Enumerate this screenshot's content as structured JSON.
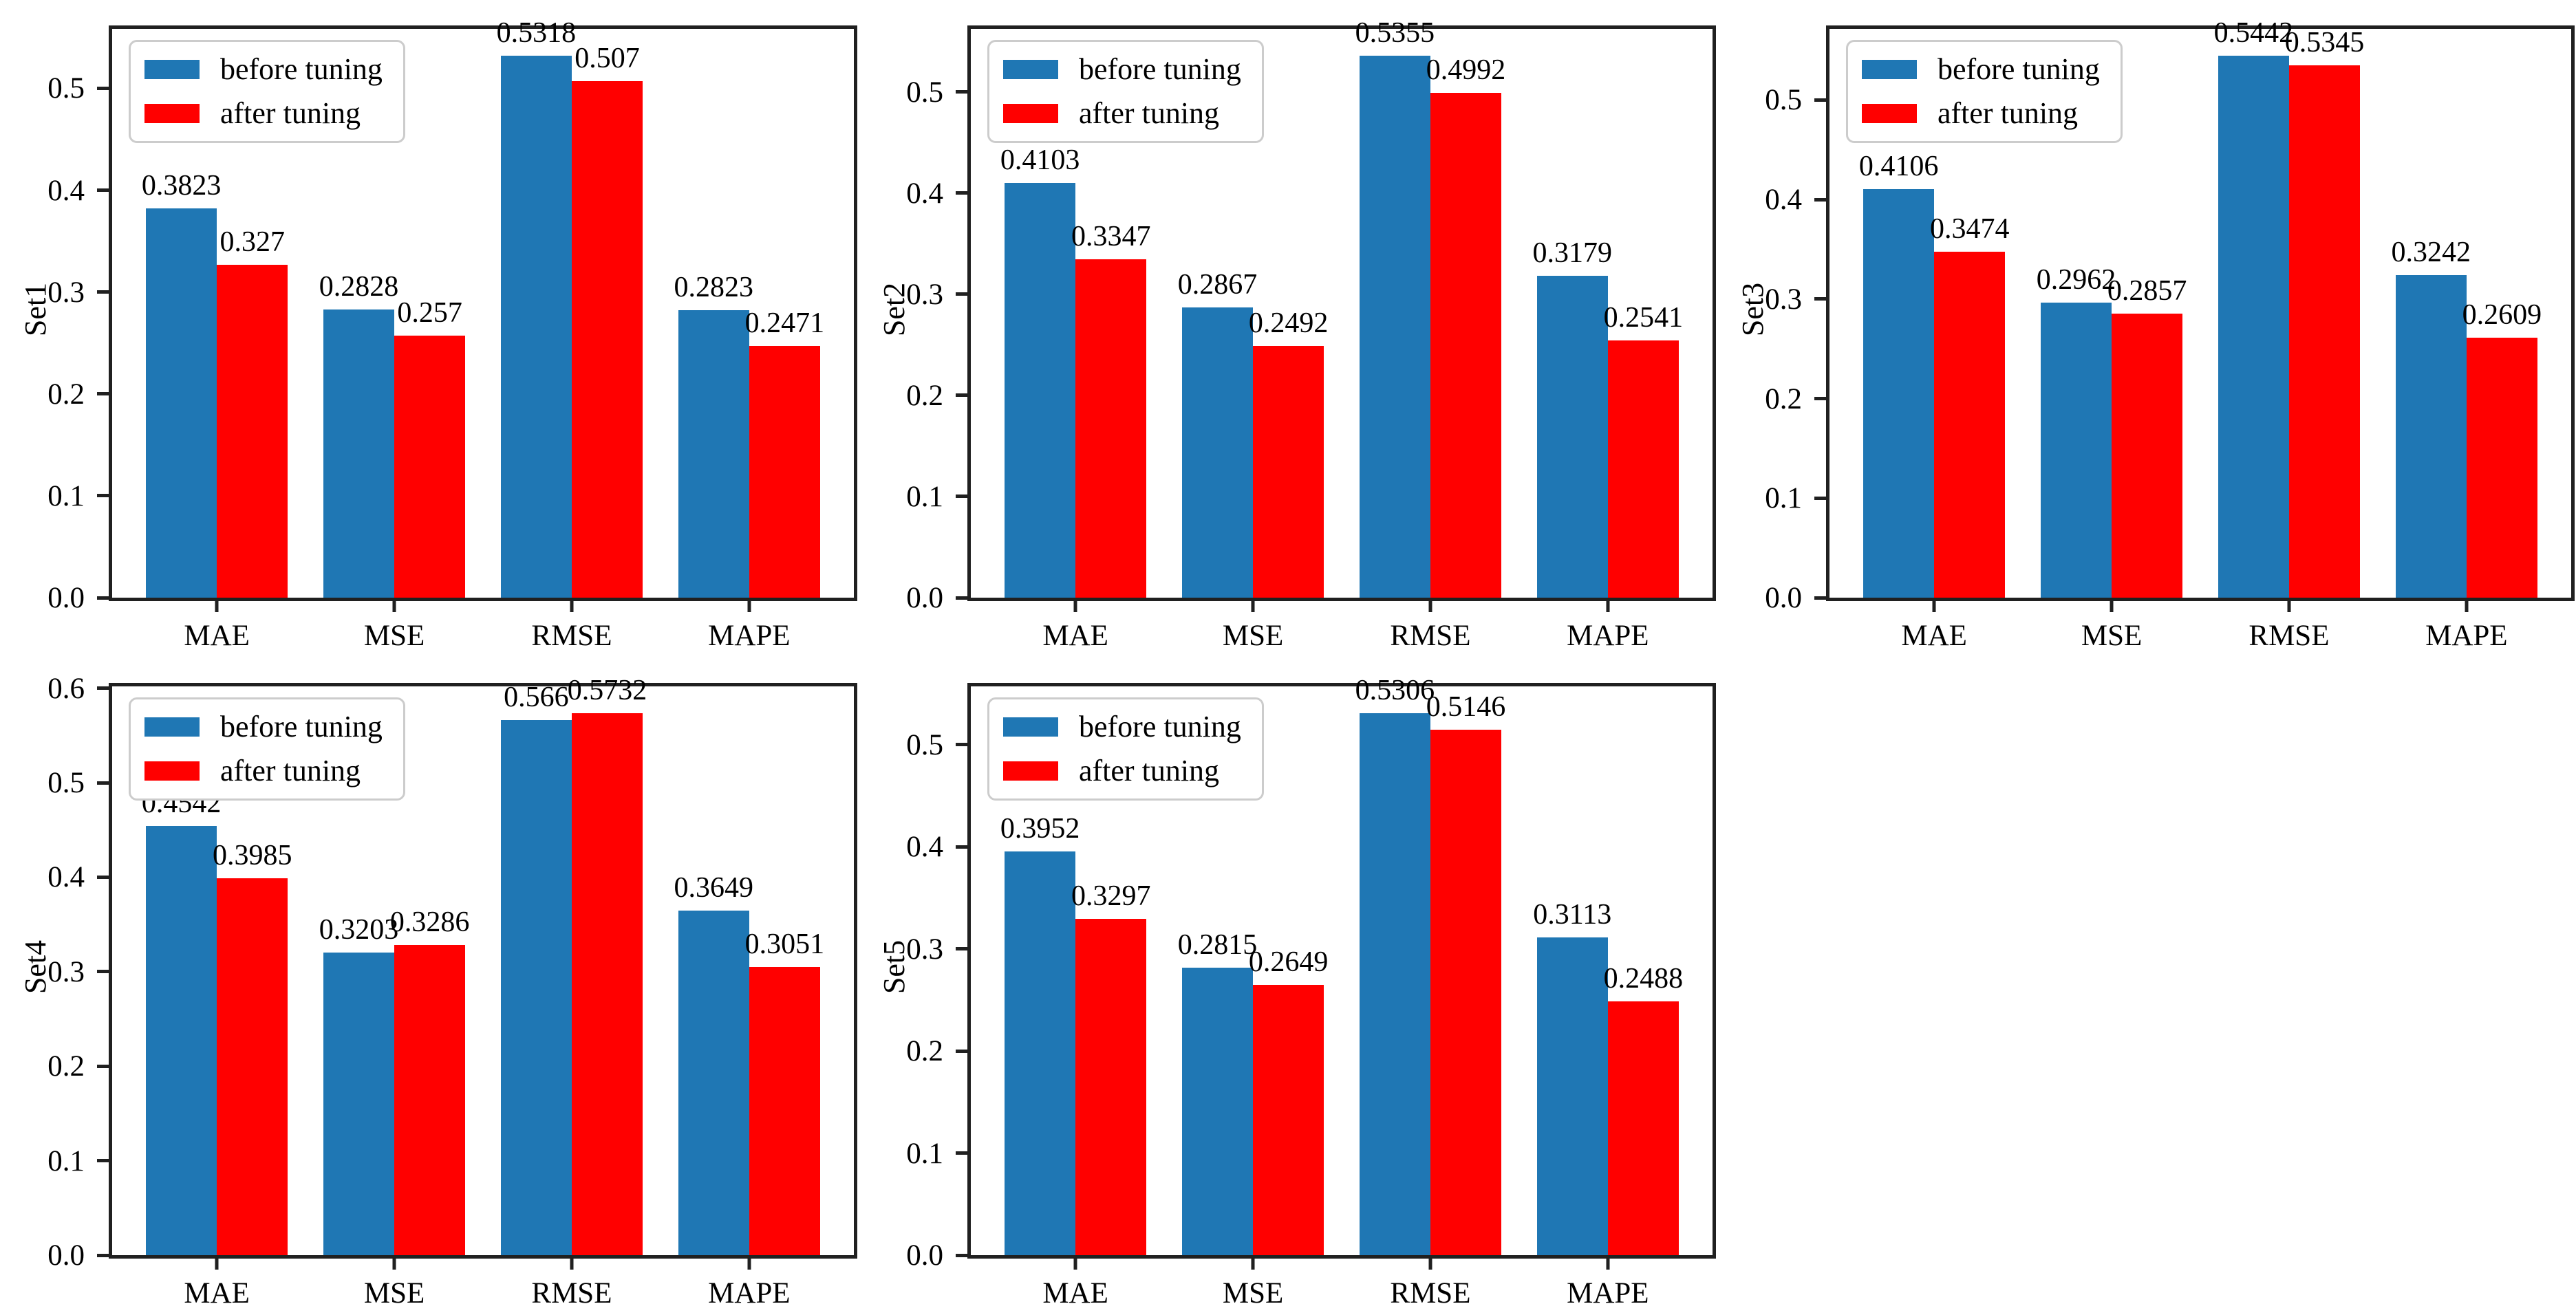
{
  "figure": {
    "background": "#ffffff",
    "grid_columns": 3,
    "grid_rows": 2
  },
  "colors": {
    "before": "#1f77b4",
    "after": "#ff0000",
    "spine": "#202020",
    "legend_border": "#cccccc",
    "text": "#000000"
  },
  "legend": {
    "position": "upper left",
    "before_label": "before tuning",
    "after_label": "after tuning"
  },
  "chart_data": [
    {
      "type": "bar",
      "ylabel": "Set1",
      "categories": [
        "MAE",
        "MSE",
        "RMSE",
        "MAPE"
      ],
      "series": [
        {
          "name": "before tuning",
          "color_key": "before",
          "values": [
            0.3823,
            0.2828,
            0.5318,
            0.2823
          ]
        },
        {
          "name": "after tuning",
          "color_key": "after",
          "values": [
            0.327,
            0.257,
            0.507,
            0.2471
          ]
        }
      ],
      "yticks": [
        0.0,
        0.1,
        0.2,
        0.3,
        0.4,
        0.5
      ],
      "ylim": [
        0,
        0.5584
      ],
      "grid": false,
      "legend_position": "upper left"
    },
    {
      "type": "bar",
      "ylabel": "Set2",
      "categories": [
        "MAE",
        "MSE",
        "RMSE",
        "MAPE"
      ],
      "series": [
        {
          "name": "before tuning",
          "color_key": "before",
          "values": [
            0.4103,
            0.2867,
            0.5355,
            0.3179
          ]
        },
        {
          "name": "after tuning",
          "color_key": "after",
          "values": [
            0.3347,
            0.2492,
            0.4992,
            0.2541
          ]
        }
      ],
      "yticks": [
        0.0,
        0.1,
        0.2,
        0.3,
        0.4,
        0.5
      ],
      "ylim": [
        0,
        0.5623
      ],
      "grid": false,
      "legend_position": "upper left"
    },
    {
      "type": "bar",
      "ylabel": "Set3",
      "categories": [
        "MAE",
        "MSE",
        "RMSE",
        "MAPE"
      ],
      "series": [
        {
          "name": "before tuning",
          "color_key": "before",
          "values": [
            0.4106,
            0.2962,
            0.5442,
            0.3242
          ]
        },
        {
          "name": "after tuning",
          "color_key": "after",
          "values": [
            0.3474,
            0.2857,
            0.5345,
            0.2609
          ]
        }
      ],
      "yticks": [
        0.0,
        0.1,
        0.2,
        0.3,
        0.4,
        0.5
      ],
      "ylim": [
        0,
        0.5714
      ],
      "grid": false,
      "legend_position": "upper left"
    },
    {
      "type": "bar",
      "ylabel": "Set4",
      "categories": [
        "MAE",
        "MSE",
        "RMSE",
        "MAPE"
      ],
      "series": [
        {
          "name": "before tuning",
          "color_key": "before",
          "values": [
            0.4542,
            0.3203,
            0.566,
            0.3649
          ]
        },
        {
          "name": "after tuning",
          "color_key": "after",
          "values": [
            0.3985,
            0.3286,
            0.5732,
            0.3051
          ]
        }
      ],
      "yticks": [
        0.0,
        0.1,
        0.2,
        0.3,
        0.4,
        0.5,
        0.6
      ],
      "ylim": [
        0,
        0.6019
      ],
      "grid": false,
      "legend_position": "upper left"
    },
    {
      "type": "bar",
      "ylabel": "Set5",
      "categories": [
        "MAE",
        "MSE",
        "RMSE",
        "MAPE"
      ],
      "series": [
        {
          "name": "before tuning",
          "color_key": "before",
          "values": [
            0.3952,
            0.2815,
            0.5306,
            0.3113
          ]
        },
        {
          "name": "after tuning",
          "color_key": "after",
          "values": [
            0.3297,
            0.2649,
            0.5146,
            0.2488
          ]
        }
      ],
      "yticks": [
        0.0,
        0.1,
        0.2,
        0.3,
        0.4,
        0.5
      ],
      "ylim": [
        0,
        0.5571
      ],
      "grid": false,
      "legend_position": "upper left"
    }
  ]
}
